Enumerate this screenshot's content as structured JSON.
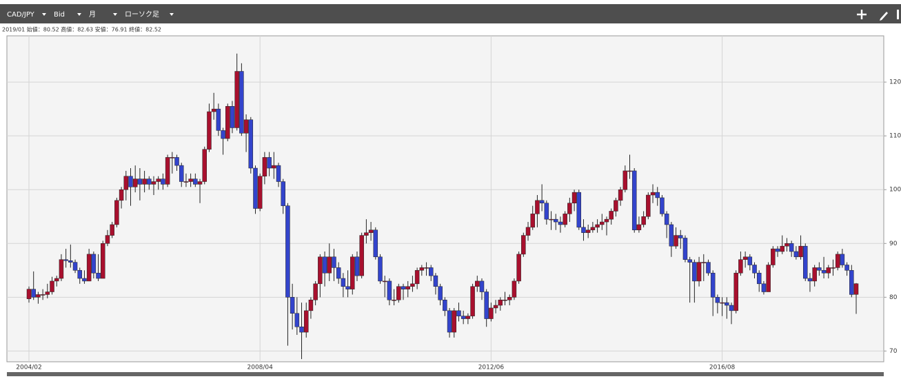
{
  "toolbar": {
    "pair": "CAD/JPY",
    "side": "Bid",
    "period": "月",
    "style": "ローソク足"
  },
  "info": "2019/01 始値：80.52 高値：82.63 安値：76.91 終値：82.52",
  "chart_data": {
    "type": "candlestick",
    "up_color": "#a8102e",
    "down_color": "#3344cc",
    "grid": true,
    "ylim": [
      68,
      128.6
    ],
    "yticks": [
      70,
      80,
      90,
      100,
      110,
      120
    ],
    "categories": [
      "2004/02",
      null,
      null,
      null,
      null,
      null,
      null,
      null,
      null,
      null,
      null,
      null,
      null,
      null,
      null,
      null,
      null,
      null,
      null,
      null,
      null,
      null,
      null,
      null,
      null,
      null,
      null,
      null,
      null,
      null,
      null,
      null,
      null,
      null,
      null,
      null,
      null,
      null,
      null,
      null,
      null,
      null,
      null,
      null,
      null,
      null,
      null,
      null,
      null,
      null,
      "2008/04",
      null,
      null,
      null,
      null,
      null,
      null,
      null,
      null,
      null,
      null,
      null,
      null,
      null,
      null,
      null,
      null,
      null,
      null,
      null,
      null,
      null,
      null,
      null,
      null,
      null,
      null,
      null,
      null,
      null,
      null,
      null,
      null,
      null,
      null,
      null,
      null,
      null,
      null,
      null,
      null,
      null,
      null,
      null,
      null,
      null,
      null,
      null,
      null,
      null,
      "2012/06",
      null,
      null,
      null,
      null,
      null,
      null,
      null,
      null,
      null,
      null,
      null,
      null,
      null,
      null,
      null,
      null,
      null,
      null,
      null,
      null,
      null,
      null,
      null,
      null,
      null,
      null,
      null,
      null,
      null,
      null,
      null,
      null,
      null,
      null,
      null,
      null,
      null,
      null,
      null,
      null,
      null,
      null,
      null,
      null,
      null,
      null,
      null,
      null,
      null,
      "2016/08",
      null,
      null,
      null,
      null,
      null,
      null,
      null,
      null,
      null,
      null,
      null,
      null,
      null,
      null,
      null,
      null,
      null,
      null,
      null,
      null,
      null,
      null,
      null,
      null,
      null,
      null,
      null,
      null
    ],
    "ohlc": [
      [
        79.7,
        82,
        79,
        81.5
      ],
      [
        81.5,
        84.8,
        79.5,
        80
      ],
      [
        80,
        81,
        78.8,
        80.5
      ],
      [
        80.5,
        81.5,
        79.5,
        80.5
      ],
      [
        80.5,
        82.5,
        79.8,
        81
      ],
      [
        81,
        83.8,
        80.5,
        83
      ],
      [
        83,
        84,
        82,
        83.5
      ],
      [
        83.5,
        88,
        83,
        87
      ],
      [
        87,
        89,
        85.5,
        86.8
      ],
      [
        86.8,
        89.8,
        85.5,
        86.5
      ],
      [
        86.5,
        87,
        84.5,
        85
      ],
      [
        85,
        85.5,
        82.5,
        83.5
      ],
      [
        83.5,
        85,
        82.5,
        83
      ],
      [
        83,
        89,
        83,
        88
      ],
      [
        88,
        88.5,
        83.5,
        84.5
      ],
      [
        84.5,
        88,
        83,
        83.5
      ],
      [
        83.5,
        90.5,
        83.5,
        90
      ],
      [
        90,
        92.5,
        89.5,
        91.5
      ],
      [
        91.5,
        94,
        91,
        93.5
      ],
      [
        93.5,
        98.5,
        93,
        98
      ],
      [
        98,
        100.5,
        96.5,
        100
      ],
      [
        100,
        103.5,
        98,
        102.5
      ],
      [
        102.5,
        104,
        97,
        100.5
      ],
      [
        100.5,
        104.5,
        99.5,
        102
      ],
      [
        102,
        104,
        98,
        101
      ],
      [
        101,
        103.5,
        99.5,
        102
      ],
      [
        102,
        102.5,
        100,
        101
      ],
      [
        101,
        102.5,
        99,
        101.5
      ],
      [
        101.5,
        102.5,
        100,
        102
      ],
      [
        102,
        103,
        100,
        101
      ],
      [
        101,
        106.5,
        100.5,
        106
      ],
      [
        106,
        107,
        103,
        106
      ],
      [
        106,
        106.5,
        103.5,
        104.5
      ],
      [
        104.5,
        105,
        100.5,
        101.5
      ],
      [
        101.5,
        103,
        100.5,
        101.5
      ],
      [
        101.5,
        103,
        100.5,
        102
      ],
      [
        102,
        103,
        100.5,
        101
      ],
      [
        101,
        102,
        97.5,
        101.5
      ],
      [
        101.5,
        108,
        101,
        107.5
      ],
      [
        107.5,
        116,
        107,
        114.5
      ],
      [
        114.5,
        118,
        113,
        115
      ],
      [
        115,
        116,
        110,
        111
      ],
      [
        111,
        111.5,
        106.5,
        109.5
      ],
      [
        109.5,
        116,
        109,
        115.5
      ],
      [
        115.5,
        116.5,
        110.5,
        111.5
      ],
      [
        111.5,
        125.3,
        111,
        122
      ],
      [
        122,
        123.5,
        110,
        110.5
      ],
      [
        110.5,
        114,
        107,
        113
      ],
      [
        113,
        113.5,
        103,
        104
      ],
      [
        104,
        104.5,
        95.5,
        96.5
      ],
      [
        96.5,
        103,
        96,
        102.5
      ],
      [
        102.5,
        107,
        101,
        106
      ],
      [
        106,
        107,
        102.5,
        104
      ],
      [
        104,
        107,
        102,
        104.5
      ],
      [
        104.5,
        105,
        100.5,
        101.5
      ],
      [
        101.5,
        102,
        95.5,
        97
      ],
      [
        97,
        97.5,
        71,
        80
      ],
      [
        80,
        82.5,
        74,
        77
      ],
      [
        77,
        80,
        73,
        74.5
      ],
      [
        74.5,
        79,
        68.5,
        73.5
      ],
      [
        73.5,
        79,
        72.5,
        77.5
      ],
      [
        77.5,
        80,
        76,
        79.5
      ],
      [
        79.5,
        83,
        78.5,
        82.5
      ],
      [
        82.5,
        88,
        80,
        87.5
      ],
      [
        87.5,
        88.5,
        82,
        84.5
      ],
      [
        84.5,
        90,
        83,
        87.5
      ],
      [
        87.5,
        89,
        83,
        85.5
      ],
      [
        85.5,
        86.5,
        82.5,
        83.5
      ],
      [
        83.5,
        84.5,
        80,
        82
      ],
      [
        82,
        85,
        80,
        81.5
      ],
      [
        81.5,
        88,
        80.5,
        87.5
      ],
      [
        87.5,
        88.5,
        83,
        84
      ],
      [
        84,
        92,
        83.5,
        91.5
      ],
      [
        91.5,
        94.5,
        90,
        92
      ],
      [
        92,
        94,
        90.5,
        92.5
      ],
      [
        92.5,
        93,
        87,
        87.5
      ],
      [
        87.5,
        88,
        82.5,
        83
      ],
      [
        83,
        84,
        80,
        83
      ],
      [
        83,
        83.5,
        78.5,
        79.5
      ],
      [
        79.5,
        81.5,
        78.5,
        79.5
      ],
      [
        79.5,
        82.5,
        79,
        82
      ],
      [
        82,
        82.5,
        79.5,
        81.5
      ],
      [
        81.5,
        83,
        80,
        82
      ],
      [
        82,
        84,
        81,
        82.5
      ],
      [
        82.5,
        85.5,
        81.5,
        85
      ],
      [
        85,
        86,
        84,
        85.5
      ],
      [
        85.5,
        86.5,
        84,
        85.5
      ],
      [
        85.5,
        86,
        83,
        84
      ],
      [
        84,
        84.5,
        80.5,
        82
      ],
      [
        82,
        82.5,
        78.5,
        79.5
      ],
      [
        79.5,
        80,
        76.5,
        77.5
      ],
      [
        77.5,
        78,
        72.5,
        73.5
      ],
      [
        73.5,
        78,
        72.5,
        77.5
      ],
      [
        77.5,
        79,
        75.5,
        76.5
      ],
      [
        76.5,
        77.5,
        75,
        76
      ],
      [
        76,
        77,
        75,
        76.5
      ],
      [
        76.5,
        82.5,
        76,
        82
      ],
      [
        82,
        84,
        81,
        83
      ],
      [
        83,
        83.5,
        79.5,
        81
      ],
      [
        81,
        81.5,
        74.5,
        76
      ],
      [
        76,
        79,
        75.5,
        78
      ],
      [
        78,
        79.5,
        77,
        78.5
      ],
      [
        78.5,
        80,
        77.5,
        79.5
      ],
      [
        79.5,
        81,
        78.5,
        79.5
      ],
      [
        79.5,
        80.5,
        78.5,
        80
      ],
      [
        80,
        83.5,
        79.5,
        83
      ],
      [
        83,
        88.5,
        82.5,
        88
      ],
      [
        88,
        92,
        87.5,
        91.5
      ],
      [
        91.5,
        94,
        90.5,
        93
      ],
      [
        93,
        97,
        92.5,
        95.5
      ],
      [
        95.5,
        99,
        93,
        98
      ],
      [
        98,
        101,
        96,
        97.5
      ],
      [
        97.5,
        98,
        93.5,
        94.5
      ],
      [
        94.5,
        96,
        92.5,
        94.5
      ],
      [
        94.5,
        95.5,
        92.5,
        94
      ],
      [
        94,
        95,
        92,
        93.5
      ],
      [
        93.5,
        96,
        93,
        95.5
      ],
      [
        95.5,
        98.5,
        94,
        97.5
      ],
      [
        97.5,
        100,
        96,
        99.5
      ],
      [
        99.5,
        100,
        92.5,
        93
      ],
      [
        93,
        94.5,
        90.5,
        92
      ],
      [
        92,
        93.5,
        91,
        92.5
      ],
      [
        92.5,
        94,
        92,
        93
      ],
      [
        93,
        94.5,
        92,
        93.5
      ],
      [
        93.5,
        95.5,
        92.5,
        94
      ],
      [
        94,
        95,
        91.5,
        94.5
      ],
      [
        94.5,
        96.5,
        93.5,
        96
      ],
      [
        96,
        98.5,
        95,
        98
      ],
      [
        98,
        100.5,
        97,
        100
      ],
      [
        100,
        104.5,
        99.5,
        103.5
      ],
      [
        103.5,
        106.5,
        102,
        103.5
      ],
      [
        103.5,
        104,
        92,
        92.5
      ],
      [
        92.5,
        95,
        92,
        93.5
      ],
      [
        93.5,
        96,
        93,
        95
      ],
      [
        95,
        99.5,
        94.5,
        99
      ],
      [
        99,
        101,
        97.5,
        99.5
      ],
      [
        99.5,
        100.5,
        97,
        98.5
      ],
      [
        98.5,
        99,
        95,
        95.5
      ],
      [
        95.5,
        96,
        91,
        93.5
      ],
      [
        93.5,
        94,
        87.5,
        89.5
      ],
      [
        89.5,
        93,
        89,
        91.5
      ],
      [
        91.5,
        92.5,
        89,
        91
      ],
      [
        91,
        91.5,
        86.5,
        87
      ],
      [
        87,
        87.5,
        79,
        86.5
      ],
      [
        86.5,
        87,
        79,
        83
      ],
      [
        83,
        87.5,
        82,
        86.5
      ],
      [
        86.5,
        88,
        83,
        86.5
      ],
      [
        86.5,
        87,
        84,
        84.5
      ],
      [
        84.5,
        85,
        76.5,
        80
      ],
      [
        80,
        80.5,
        77,
        79
      ],
      [
        79,
        80,
        76.5,
        79
      ],
      [
        79,
        80,
        76,
        78.5
      ],
      [
        78.5,
        79,
        75,
        77.5
      ],
      [
        77.5,
        85,
        77,
        84.5
      ],
      [
        84.5,
        88.5,
        84,
        87
      ],
      [
        87,
        88.5,
        85.5,
        87.5
      ],
      [
        87.5,
        88,
        85,
        86
      ],
      [
        86,
        86.5,
        83.5,
        84.5
      ],
      [
        84.5,
        85,
        81,
        82.5
      ],
      [
        82.5,
        83,
        80.5,
        81
      ],
      [
        81,
        86.5,
        81,
        86
      ],
      [
        86,
        89.5,
        85.5,
        89
      ],
      [
        89,
        89.5,
        87.5,
        88.5
      ],
      [
        88.5,
        91.5,
        88,
        89.5
      ],
      [
        89.5,
        91,
        88.5,
        90
      ],
      [
        90,
        90.5,
        87.5,
        88.5
      ],
      [
        88.5,
        89.5,
        87,
        87.5
      ],
      [
        87.5,
        91.5,
        87,
        89.5
      ],
      [
        89.5,
        90,
        83,
        83.5
      ],
      [
        83.5,
        84.5,
        81,
        83
      ],
      [
        83,
        86,
        82,
        85.5
      ],
      [
        85.5,
        86.5,
        84,
        85
      ],
      [
        85,
        87.5,
        83.5,
        84.5
      ],
      [
        84.5,
        86,
        83.5,
        85.5
      ],
      [
        85.5,
        87,
        84,
        85.5
      ],
      [
        85.5,
        88.5,
        85,
        88
      ],
      [
        88,
        89,
        85.5,
        86
      ],
      [
        86,
        86.5,
        84,
        85
      ],
      [
        85,
        86,
        80,
        80.5
      ],
      [
        80.52,
        82.63,
        76.91,
        82.52
      ]
    ]
  }
}
